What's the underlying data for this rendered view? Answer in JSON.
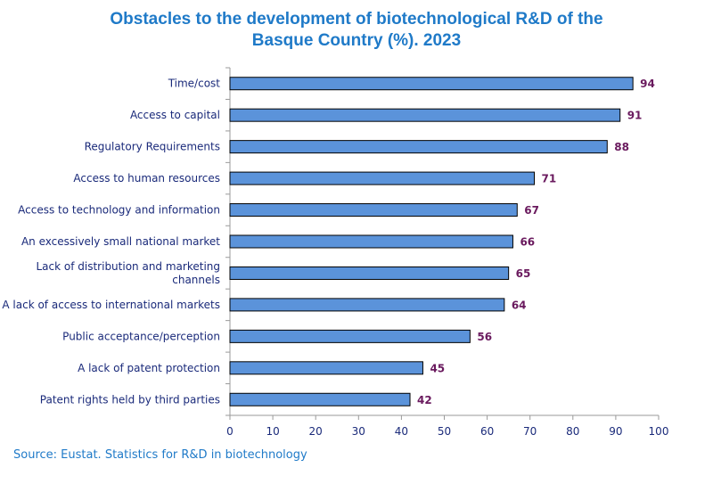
{
  "chart_data": {
    "type": "bar",
    "orientation": "horizontal",
    "title_lines": [
      "Obstacles to the development of biotechnological R&D of the",
      "Basque Country (%). 2023"
    ],
    "categories": [
      [
        "Time/cost"
      ],
      [
        "Access to capital"
      ],
      [
        "Regulatory Requirements"
      ],
      [
        "Access to human resources"
      ],
      [
        "Access to technology and information"
      ],
      [
        "An excessively small national market"
      ],
      [
        "Lack of distribution and marketing",
        "channels"
      ],
      [
        "A lack of access to international markets"
      ],
      [
        "Public acceptance/perception"
      ],
      [
        "A lack of patent protection"
      ],
      [
        "Patent rights held by third parties"
      ]
    ],
    "values": [
      94,
      91,
      88,
      71,
      67,
      66,
      65,
      64,
      56,
      45,
      42
    ],
    "xlim": [
      0,
      100
    ],
    "xticks": [
      0,
      10,
      20,
      30,
      40,
      50,
      60,
      70,
      80,
      90,
      100
    ],
    "bar_color": "#5b93da",
    "bar_edge_color": "#000000",
    "label_color": "#6a1a5e",
    "grid": false,
    "legend": "none"
  },
  "source": "Source: Eustat. Statistics for R&D in biotechnology",
  "colors": {
    "title": "#1f7ac8",
    "axis_text": "#1a2a7a"
  }
}
